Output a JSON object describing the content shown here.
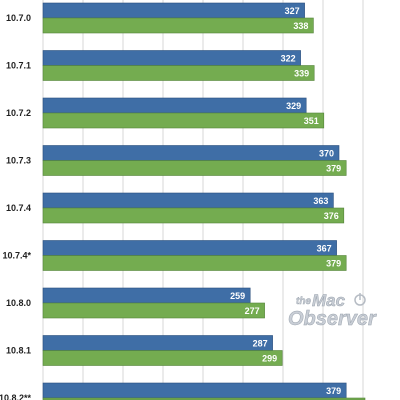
{
  "chart_data": {
    "type": "bar",
    "orientation": "horizontal",
    "categories": [
      "10.7.0",
      "10.7.1",
      "10.7.2",
      "10.7.3",
      "10.7.4",
      "10.7.4*",
      "10.8.0",
      "10.8.1",
      "10.8.2**"
    ],
    "series": [
      {
        "values": [
          327,
          322,
          329,
          370,
          363,
          367,
          259,
          287,
          379
        ]
      },
      {
        "values": [
          338,
          339,
          351,
          379,
          376,
          379,
          277,
          299,
          null
        ]
      }
    ],
    "xlim": [
      0,
      400
    ],
    "grid": true,
    "colors": {
      "series1": "#3f6ea6",
      "series2": "#74ac50"
    }
  },
  "watermark": {
    "line1": "the",
    "line2": "Mac",
    "line3": "Observer"
  }
}
